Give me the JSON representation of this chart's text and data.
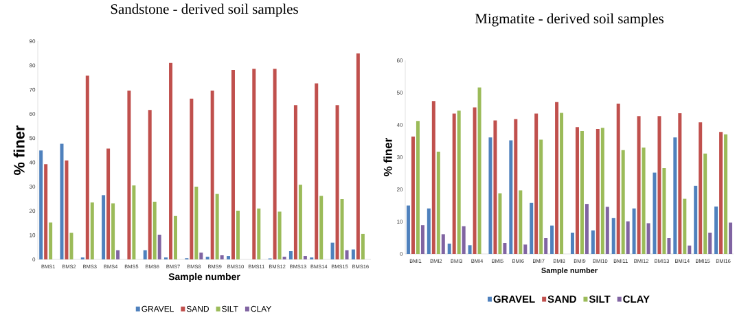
{
  "chart_data": [
    {
      "type": "bar",
      "title": "Sandstone - derived soil samples",
      "xlabel": "Sample number",
      "ylabel": "% finer",
      "legend": "bottom",
      "ylim": [
        0,
        90
      ],
      "yticks": [
        0,
        10,
        20,
        30,
        40,
        50,
        60,
        70,
        80,
        90
      ],
      "categories": [
        "BMS1",
        "BMS2",
        "BMS3",
        "BMS4",
        "BMS5",
        "BMS6",
        "BMS7",
        "BMS8",
        "BMS9",
        "BMS10",
        "BMS11",
        "BMS12",
        "BMS13",
        "BMS14",
        "BMS15",
        "BMS16"
      ],
      "series": [
        {
          "name": "GRAVEL",
          "color": "#4f81bd",
          "values": [
            44.9,
            47.7,
            0.8,
            26.5,
            null,
            3.8,
            0.8,
            0.5,
            1.1,
            1.4,
            null,
            0.4,
            3.4,
            0.8,
            6.9,
            4.1
          ]
        },
        {
          "name": "SAND",
          "color": "#c0504d",
          "values": [
            39.3,
            40.8,
            75.8,
            45.7,
            69.6,
            61.6,
            81,
            66.3,
            69.6,
            78.1,
            78.6,
            78.6,
            63.6,
            72.6,
            63.6,
            85
          ]
        },
        {
          "name": "SILT",
          "color": "#9bbb59",
          "values": [
            15.2,
            11,
            23.5,
            23.1,
            30.5,
            23.8,
            17.9,
            30,
            27,
            20.1,
            21,
            19.7,
            30.8,
            26.2,
            24.9,
            10.5
          ]
        },
        {
          "name": "CLAY",
          "color": "#8064a2",
          "values": [
            null,
            null,
            null,
            3.8,
            null,
            10.2,
            null,
            2.8,
            1.7,
            null,
            null,
            1.1,
            1.4,
            null,
            3.8,
            null
          ]
        }
      ]
    },
    {
      "type": "bar",
      "title": "Migmatite - derived soil samples",
      "xlabel": "Sample number",
      "ylabel": "% finer",
      "legend": "bottom",
      "ylim": [
        0,
        60
      ],
      "yticks": [
        0,
        10,
        20,
        30,
        40,
        50,
        60
      ],
      "categories": [
        "BMI1",
        "BMI2",
        "BMI3",
        "BMI4",
        "BMI5",
        "BMI6",
        "BMI7",
        "BMI8",
        "BMI9",
        "BMI10",
        "BMI11",
        "BMI12",
        "BMI13",
        "BMI14",
        "BMI15",
        "BMI16"
      ],
      "series": [
        {
          "name": "GRAVEL",
          "color": "#4f81bd",
          "values": [
            15,
            14.1,
            3.2,
            2.7,
            36.1,
            35.2,
            15.8,
            8.8,
            6.6,
            7.3,
            11.1,
            14.1,
            25.2,
            36.1,
            21.1,
            14.7
          ]
        },
        {
          "name": "SAND",
          "color": "#c0504d",
          "values": [
            36.4,
            47.4,
            43.5,
            45.4,
            41.4,
            41.8,
            43.5,
            47.1,
            39.3,
            38.7,
            46.6,
            42.7,
            42.7,
            43.6,
            40.8,
            37.8
          ]
        },
        {
          "name": "SILT",
          "color": "#9bbb59",
          "values": [
            41.2,
            31.7,
            44.4,
            51.6,
            18.8,
            19.7,
            35.4,
            43.7,
            38.1,
            39.1,
            32.2,
            33,
            26.6,
            17.1,
            31.1,
            37.1
          ]
        },
        {
          "name": "CLAY",
          "color": "#8064a2",
          "values": [
            8.9,
            6.1,
            8.6,
            null,
            3.4,
            2.9,
            4.9,
            null,
            15.5,
            14.6,
            10.1,
            9.5,
            4.9,
            2.6,
            6.6,
            9.7
          ]
        }
      ]
    }
  ]
}
